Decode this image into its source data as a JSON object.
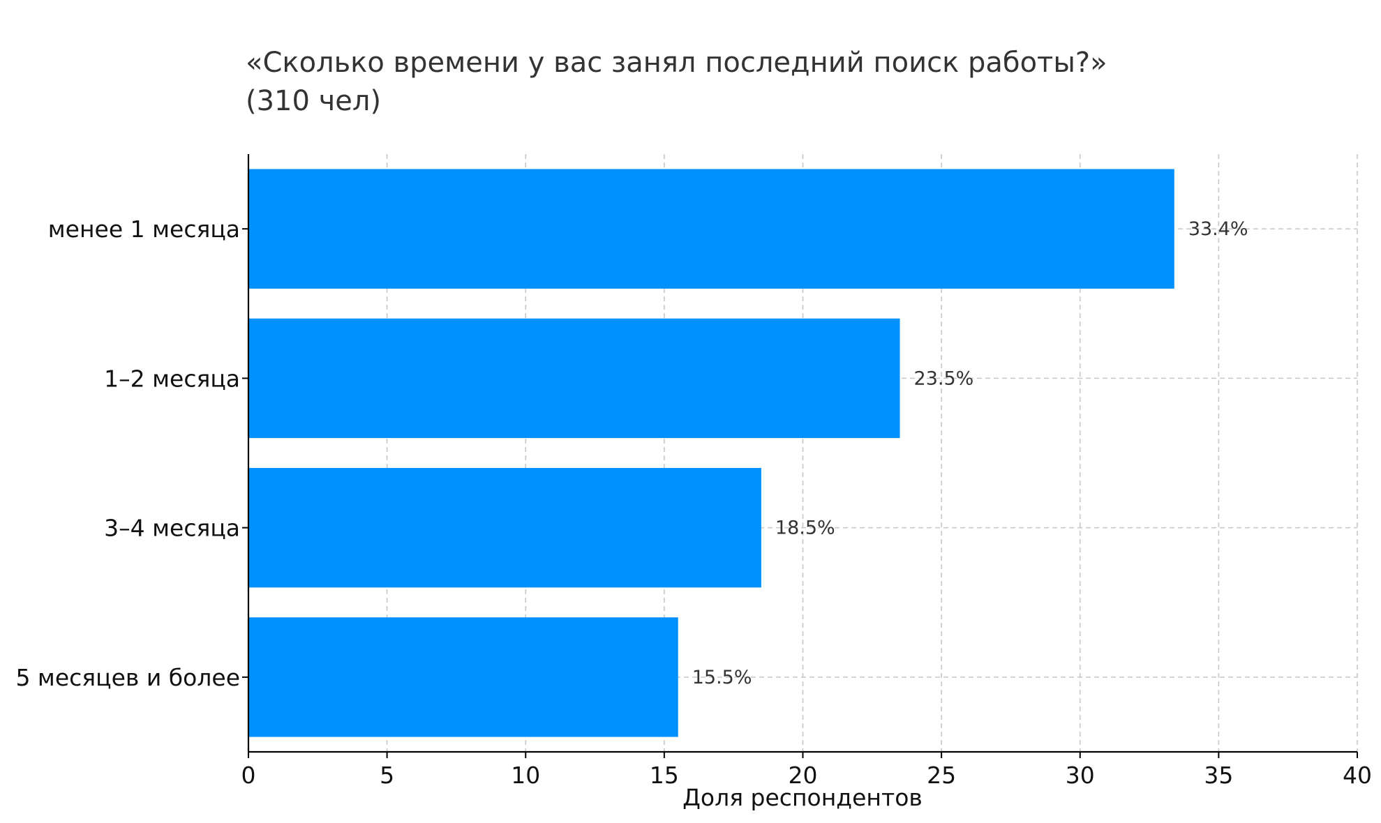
{
  "chart_data": {
    "type": "bar",
    "orientation": "horizontal",
    "title_lines": [
      "«Сколько времени у вас занял последний поиск работы?»",
      "(310 чел)"
    ],
    "categories": [
      "менее 1 месяца",
      "1–2 месяца",
      "3–4 месяца",
      "5 месяцев и более"
    ],
    "values": [
      33.4,
      23.5,
      18.5,
      15.5
    ],
    "value_labels": [
      "33.4%",
      "23.5%",
      "18.5%",
      "15.5%"
    ],
    "xlabel": "Доля респондентов",
    "ylabel": "",
    "xlim": [
      0,
      40
    ],
    "xticks": [
      0,
      5,
      10,
      15,
      20,
      25,
      30,
      35,
      40
    ],
    "xtick_labels": [
      "0",
      "5",
      "10",
      "15",
      "20",
      "25",
      "30",
      "35",
      "40"
    ],
    "grid": true,
    "bar_color": "#0091FF",
    "grid_color": "#C8C8C8"
  }
}
